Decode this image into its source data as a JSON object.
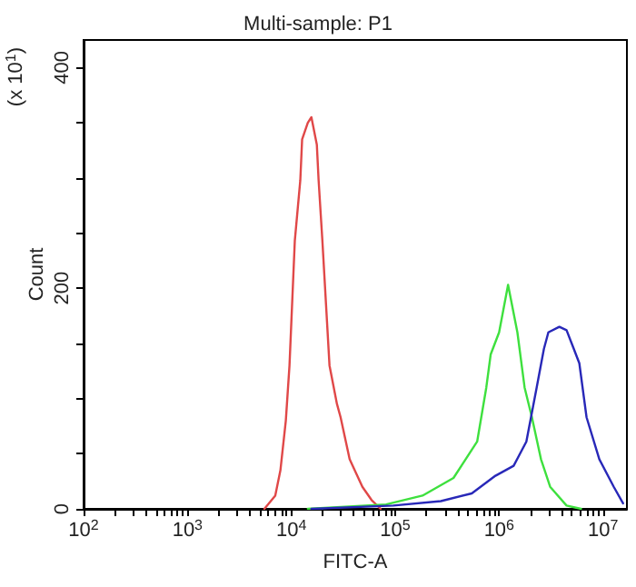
{
  "chart_data": {
    "type": "line",
    "title": "Multi-sample: P1",
    "xlabel": "FITC-A",
    "ylabel": "Count",
    "annotations": [
      "(x 10$^{1}$)"
    ],
    "log": "x",
    "grid": false,
    "marker": "none",
    "line_style": "solid",
    "xlim": [
      100,
      17000000
    ],
    "xticks": [
      {
        "value": 100,
        "label": "10$^{2}$"
      },
      {
        "value": 200,
        "label": null
      },
      {
        "value": 300,
        "label": null
      },
      {
        "value": 400,
        "label": null
      },
      {
        "value": 500,
        "label": null
      },
      {
        "value": 600,
        "label": null
      },
      {
        "value": 700,
        "label": null
      },
      {
        "value": 800,
        "label": null
      },
      {
        "value": 900,
        "label": null
      },
      {
        "value": 1000,
        "label": "10$^{3}$"
      },
      {
        "value": 2000,
        "label": null
      },
      {
        "value": 3000,
        "label": null
      },
      {
        "value": 4000,
        "label": null
      },
      {
        "value": 5000,
        "label": null
      },
      {
        "value": 6000,
        "label": null
      },
      {
        "value": 7000,
        "label": null
      },
      {
        "value": 8000,
        "label": null
      },
      {
        "value": 9000,
        "label": null
      },
      {
        "value": 10000,
        "label": "10$^{4}$"
      },
      {
        "value": 20000,
        "label": null
      },
      {
        "value": 30000,
        "label": null
      },
      {
        "value": 40000,
        "label": null
      },
      {
        "value": 50000,
        "label": null
      },
      {
        "value": 60000,
        "label": null
      },
      {
        "value": 70000,
        "label": null
      },
      {
        "value": 80000,
        "label": null
      },
      {
        "value": 90000,
        "label": null
      },
      {
        "value": 100000,
        "label": "10$^{5}$"
      },
      {
        "value": 200000,
        "label": null
      },
      {
        "value": 300000,
        "label": null
      },
      {
        "value": 400000,
        "label": null
      },
      {
        "value": 500000,
        "label": null
      },
      {
        "value": 600000,
        "label": null
      },
      {
        "value": 700000,
        "label": null
      },
      {
        "value": 800000,
        "label": null
      },
      {
        "value": 900000,
        "label": null
      },
      {
        "value": 1000000,
        "label": "10$^{6}$"
      },
      {
        "value": 2000000,
        "label": null
      },
      {
        "value": 3000000,
        "label": null
      },
      {
        "value": 4000000,
        "label": null
      },
      {
        "value": 5000000,
        "label": null
      },
      {
        "value": 6000000,
        "label": null
      },
      {
        "value": 7000000,
        "label": null
      },
      {
        "value": 8000000,
        "label": null
      },
      {
        "value": 9000000,
        "label": null
      },
      {
        "value": 10000000,
        "label": "10$^{7}$"
      }
    ],
    "ylim": [
      0,
      425
    ],
    "yticks": [
      0,
      {
        "value": 50,
        "label": null
      },
      {
        "value": 100,
        "label": null
      },
      {
        "value": 150,
        "label": null
      },
      200,
      {
        "value": 250,
        "label": null
      },
      {
        "value": 300,
        "label": null
      },
      {
        "value": 350,
        "label": null
      },
      400
    ],
    "series": [
      {
        "color": "#e04848",
        "x": [
          5500,
          7000,
          7850,
          8850,
          9600,
          10800,
          12200,
          12700,
          14400,
          15600,
          17600,
          18300,
          19900,
          23300,
          27500,
          29800,
          36400,
          48300,
          59200,
          72400
        ],
        "values": [
          0,
          12,
          35,
          80,
          130,
          243,
          298,
          335,
          350,
          355,
          330,
          298,
          243,
          130,
          95,
          83,
          45,
          20,
          8,
          0
        ]
      },
      {
        "color": "#3ee03e",
        "x": [
          14400,
          81700,
          183000,
          364000,
          615000,
          753000,
          830000,
          1000000,
          1220000,
          1500000,
          1760000,
          2070000,
          2530000,
          3100000,
          4460000,
          6150000
        ],
        "values": [
          0,
          4,
          12,
          28,
          61,
          110,
          140,
          160,
          203,
          160,
          110,
          83,
          45,
          20,
          3,
          0
        ]
      },
      {
        "color": "#2828b8",
        "x": [
          15600,
          96000,
          275000,
          546000,
          922000,
          1380000,
          1830000,
          2300000,
          2700000,
          2980000,
          3800000,
          4460000,
          5240000,
          5920000,
          6950000,
          9220000,
          12700000,
          15600000
        ],
        "values": [
          0,
          3,
          7,
          14,
          30,
          39,
          61,
          110,
          145,
          160,
          165,
          162,
          145,
          132,
          83,
          45,
          20,
          5
        ]
      }
    ]
  }
}
